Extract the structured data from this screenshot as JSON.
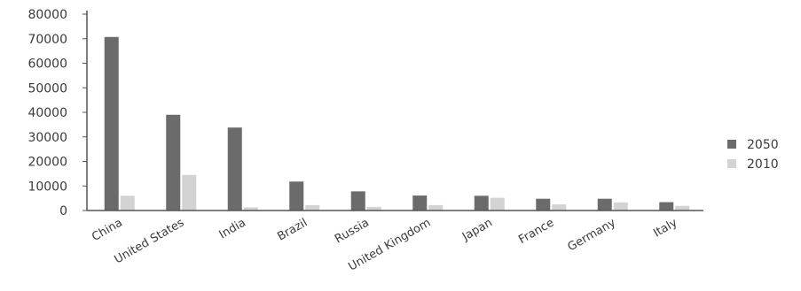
{
  "chart_data": {
    "type": "bar",
    "title": "",
    "xlabel": "",
    "ylabel": "",
    "ylim": [
      0,
      80000
    ],
    "yticks": [
      0,
      10000,
      20000,
      30000,
      40000,
      50000,
      60000,
      70000,
      80000
    ],
    "ytick_labels": [
      "0",
      "10000",
      "20000",
      "30000",
      "40000",
      "50000",
      "60000",
      "70000",
      "80000"
    ],
    "categories": [
      "China",
      "United States",
      "India",
      "Brazil",
      "Russia",
      "United Kingdom",
      "Japan",
      "France",
      "Germany",
      "Italy"
    ],
    "series": [
      {
        "name": "2050",
        "color": "#6b6b6b",
        "values": [
          70700,
          39000,
          33800,
          11800,
          7800,
          6100,
          6000,
          4800,
          4800,
          3400
        ]
      },
      {
        "name": "2010",
        "color": "#d3d3d3",
        "values": [
          6000,
          14500,
          1300,
          2200,
          1500,
          2200,
          5200,
          2500,
          3300,
          1900
        ]
      }
    ],
    "legend_position": "right",
    "grid": false
  }
}
